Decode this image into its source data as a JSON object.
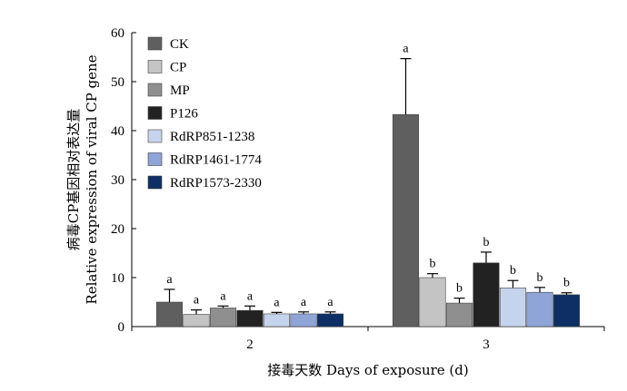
{
  "chart_data": {
    "type": "bar",
    "xlabel": "接毒天数 Days of exposure (d)",
    "ylabel_line1": "病毒CP基因相对表达量",
    "ylabel_line2": "Relative expression of viral CP gene",
    "ylim": [
      0,
      60
    ],
    "yticks": [
      0,
      10,
      20,
      30,
      40,
      50,
      60
    ],
    "categories": [
      "2",
      "3"
    ],
    "legend_position": "top-left",
    "series": [
      {
        "name": "CK",
        "color": "#5f5f5f",
        "values": [
          5.0,
          43.3
        ],
        "errors": [
          2.6,
          11.4
        ],
        "labels": [
          "a",
          "a"
        ]
      },
      {
        "name": "CP",
        "color": "#c4c4c4",
        "values": [
          2.5,
          10.0
        ],
        "errors": [
          0.9,
          0.8
        ],
        "labels": [
          "a",
          "b"
        ]
      },
      {
        "name": "MP",
        "color": "#8f8f8f",
        "values": [
          3.8,
          4.8
        ],
        "errors": [
          0.4,
          1.0
        ],
        "labels": [
          "a",
          "b"
        ]
      },
      {
        "name": "P126",
        "color": "#222222",
        "values": [
          3.3,
          13.0
        ],
        "errors": [
          0.9,
          2.2
        ],
        "labels": [
          "a",
          "b"
        ]
      },
      {
        "name": "RdRP851-1238",
        "color": "#c6d3ec",
        "values": [
          2.6,
          7.9
        ],
        "errors": [
          0.3,
          1.5
        ],
        "labels": [
          "a",
          "b"
        ]
      },
      {
        "name": "RdRP1461-1774",
        "color": "#8fa4d7",
        "values": [
          2.6,
          7.0
        ],
        "errors": [
          0.4,
          1.0
        ],
        "labels": [
          "a",
          "b"
        ]
      },
      {
        "name": "RdRP1573-2330",
        "color": "#0d2f66",
        "values": [
          2.6,
          6.5
        ],
        "errors": [
          0.4,
          0.4
        ],
        "labels": [
          "a",
          "b"
        ]
      }
    ]
  }
}
